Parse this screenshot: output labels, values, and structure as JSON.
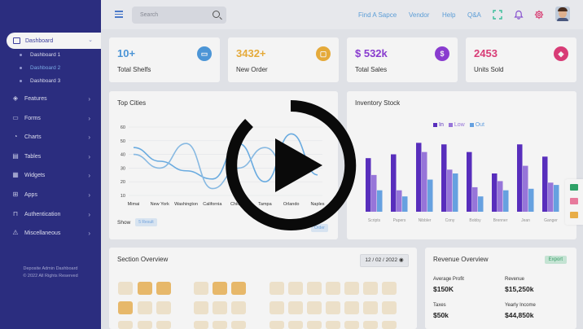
{
  "sidebar": {
    "active": {
      "label": "Dashboard"
    },
    "subitems": [
      "Dashboard 1",
      "Dashboard 2",
      "Dashboard 3"
    ],
    "items": [
      {
        "label": "Features",
        "icon": "cube-icon"
      },
      {
        "label": "Forms",
        "icon": "truck-icon"
      },
      {
        "label": "Charts",
        "icon": "pie-chart-icon"
      },
      {
        "label": "Tables",
        "icon": "table-icon"
      },
      {
        "label": "Widgets",
        "icon": "widgets-icon"
      },
      {
        "label": "Apps",
        "icon": "apps-grid-icon"
      },
      {
        "label": "Authentication",
        "icon": "lock-icon"
      },
      {
        "label": "Miscellaneous",
        "icon": "warning-icon"
      }
    ],
    "footer_title": "Deposite Admin Dashboard",
    "footer_copy": "© 2022 All Rights Reserved"
  },
  "header": {
    "search_placeholder": "Search",
    "nav": [
      "Find A Sapce",
      "Vendor",
      "Help",
      "Q&A"
    ]
  },
  "stats": [
    {
      "value": "10+",
      "label": "Total Shelfs",
      "color": "#4f9be0",
      "icon": "shelf-icon"
    },
    {
      "value": "3432+",
      "label": "New Order",
      "color": "#f0b23c",
      "icon": "bag-icon"
    },
    {
      "value": "$ 532k",
      "label": "Total Sales",
      "color": "#8f3ed8",
      "icon": "dollar-icon"
    },
    {
      "value": "2453",
      "label": "Units Sold",
      "color": "#e23e7b",
      "icon": "box-icon"
    }
  ],
  "top_cities": {
    "title": "Top Cities",
    "show_label": "Show",
    "show_select": "5 Result",
    "right_select": "Order",
    "chart_data": {
      "type": "line",
      "categories": [
        "Mimai",
        "New York",
        "Washington",
        "California",
        "Chicago",
        "Tampa",
        "Orlando",
        "Naples"
      ],
      "y_ticks": [
        10,
        20,
        30,
        40,
        50,
        60
      ],
      "ylim": [
        10,
        60
      ],
      "series": [
        {
          "values": [
            45,
            35,
            28,
            22,
            48,
            20,
            55,
            25
          ]
        },
        {
          "values": [
            40,
            30,
            48,
            15,
            30,
            45,
            25,
            30
          ]
        }
      ]
    }
  },
  "inventory": {
    "title": "Inventory Stock",
    "chart_data": {
      "type": "bar",
      "categories": [
        "Scripts",
        "Papers",
        "Nibbler",
        "Cony",
        "Bobby",
        "Brenner",
        "Jean",
        "Ganger"
      ],
      "series": [
        {
          "name": "In",
          "color": "#5b2fc4",
          "values": [
            70,
            75,
            90,
            88,
            78,
            50,
            88,
            72
          ]
        },
        {
          "name": "Low",
          "color": "#9d7ae3",
          "values": [
            48,
            28,
            78,
            55,
            32,
            40,
            60,
            38
          ]
        },
        {
          "name": "Out",
          "color": "#6aa8ea",
          "values": [
            28,
            20,
            42,
            50,
            20,
            28,
            30,
            35
          ]
        }
      ],
      "ylim": [
        0,
        100
      ]
    }
  },
  "section_overview": {
    "title": "Section Overview",
    "date": "12 / 02 / 2022"
  },
  "revenue": {
    "title": "Revenue Overview",
    "badge": "Export",
    "items": [
      {
        "label": "Average Profit",
        "value": "$150K"
      },
      {
        "label": "Revenue",
        "value": "$15,250k"
      },
      {
        "label": "Taxes",
        "value": "$50k"
      },
      {
        "label": "Yearly Income",
        "value": "$44,850k"
      }
    ]
  }
}
